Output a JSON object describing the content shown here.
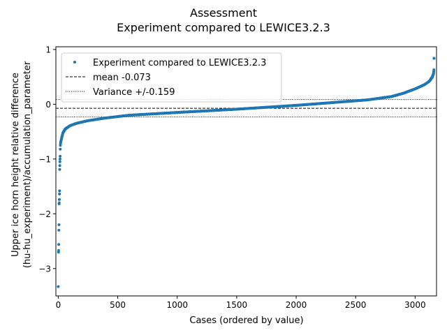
{
  "chart_data": {
    "type": "scatter",
    "title": "Assessment",
    "subtitle": "Experiment compared to LEWICE3.2.3",
    "xlabel": "Cases (ordered by value)",
    "ylabel_line1": "Upper ice horn height relative difference",
    "ylabel_line2": "(hu-hu_experiment)/accumulation_parameter",
    "xlim": [
      -20,
      3180
    ],
    "ylim": [
      -3.5,
      1.05
    ],
    "xticks": [
      0,
      500,
      1000,
      1500,
      2000,
      2500,
      3000
    ],
    "yticks": [
      -3,
      -2,
      -1,
      0,
      1
    ],
    "n_cases": 3160,
    "series_color": "#1f77b4",
    "mean": -0.073,
    "variance": 0.159,
    "legend": {
      "placement": "upper-left",
      "entries": [
        "Experiment compared to LEWICE3.2.3",
        "mean -0.073",
        "Variance +/-0.159"
      ]
    },
    "outliers": [
      {
        "x": 0,
        "y": -3.33
      },
      {
        "x": 2,
        "y": -2.7
      },
      {
        "x": 3,
        "y": -2.67
      },
      {
        "x": 4,
        "y": -2.56
      },
      {
        "x": 5,
        "y": -2.3
      },
      {
        "x": 6,
        "y": -2.2
      },
      {
        "x": 7,
        "y": -1.82
      },
      {
        "x": 8,
        "y": -1.8
      },
      {
        "x": 9,
        "y": -1.74
      },
      {
        "x": 10,
        "y": -1.64
      },
      {
        "x": 11,
        "y": -1.58
      },
      {
        "x": 12,
        "y": -1.19
      },
      {
        "x": 13,
        "y": -1.12
      },
      {
        "x": 14,
        "y": -1.05
      },
      {
        "x": 15,
        "y": -1.0
      },
      {
        "x": 16,
        "y": -0.95
      },
      {
        "x": 17,
        "y": -0.82
      },
      {
        "x": 18,
        "y": -0.75
      },
      {
        "x": 19,
        "y": -0.72
      }
    ],
    "curve_knots": [
      {
        "x": 20,
        "y": -0.7
      },
      {
        "x": 30,
        "y": -0.6
      },
      {
        "x": 40,
        "y": -0.52
      },
      {
        "x": 60,
        "y": -0.45
      },
      {
        "x": 100,
        "y": -0.39
      },
      {
        "x": 150,
        "y": -0.35
      },
      {
        "x": 250,
        "y": -0.3
      },
      {
        "x": 400,
        "y": -0.25
      },
      {
        "x": 600,
        "y": -0.2
      },
      {
        "x": 1000,
        "y": -0.15
      },
      {
        "x": 1500,
        "y": -0.09
      },
      {
        "x": 2000,
        "y": -0.02
      },
      {
        "x": 2300,
        "y": 0.03
      },
      {
        "x": 2600,
        "y": 0.08
      },
      {
        "x": 2800,
        "y": 0.14
      },
      {
        "x": 2900,
        "y": 0.2
      },
      {
        "x": 3000,
        "y": 0.28
      },
      {
        "x": 3080,
        "y": 0.36
      },
      {
        "x": 3120,
        "y": 0.42
      },
      {
        "x": 3145,
        "y": 0.5
      },
      {
        "x": 3155,
        "y": 0.56
      },
      {
        "x": 3158,
        "y": 0.63
      },
      {
        "x": 3159,
        "y": 0.84
      }
    ]
  }
}
